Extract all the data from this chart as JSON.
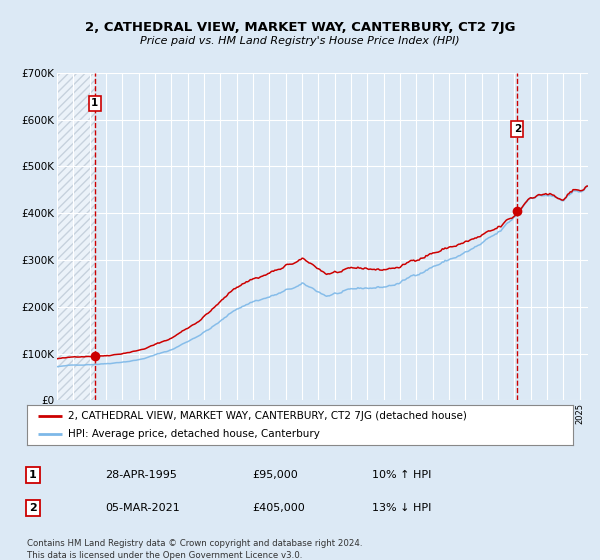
{
  "title": "2, CATHEDRAL VIEW, MARKET WAY, CANTERBURY, CT2 7JG",
  "subtitle": "Price paid vs. HM Land Registry's House Price Index (HPI)",
  "legend_line1": "2, CATHEDRAL VIEW, MARKET WAY, CANTERBURY, CT2 7JG (detached house)",
  "legend_line2": "HPI: Average price, detached house, Canterbury",
  "annotation1_date": "28-APR-1995",
  "annotation1_price": "£95,000",
  "annotation1_hpi": "10% ↑ HPI",
  "annotation2_date": "05-MAR-2021",
  "annotation2_price": "£405,000",
  "annotation2_hpi": "13% ↓ HPI",
  "footer": "Contains HM Land Registry data © Crown copyright and database right 2024.\nThis data is licensed under the Open Government Licence v3.0.",
  "sale1_year": 1995.32,
  "sale1_value": 95000,
  "sale2_year": 2021.17,
  "sale2_value": 405000,
  "ylim": [
    0,
    700000
  ],
  "xlim_start": 1993.0,
  "xlim_end": 2025.5,
  "background_color": "#dce9f5",
  "red_line_color": "#cc0000",
  "blue_line_color": "#7db8e8",
  "dot_color": "#cc0000"
}
